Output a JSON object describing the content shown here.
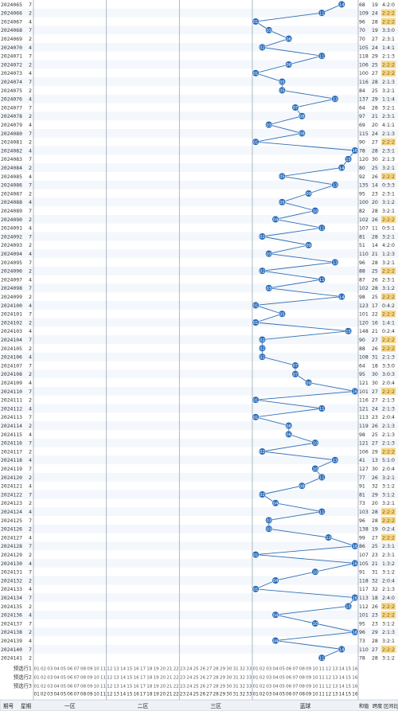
{
  "chart_data": {
    "type": "table",
    "title": "",
    "header_bottom": {
      "period_label": "期号",
      "week_label": "星期",
      "zone1_label": "一区",
      "zone2_label": "二区",
      "zone3_label": "三区",
      "blue_label": "蓝球",
      "sum_label": "和值",
      "span_label": "跨度",
      "ratio_label": "区间比"
    },
    "red_numbers_label": [
      "01",
      "02",
      "03",
      "04",
      "05",
      "06",
      "07",
      "08",
      "09",
      "10",
      "11",
      "12",
      "13",
      "14",
      "15",
      "16",
      "17",
      "18",
      "19",
      "20",
      "21",
      "22",
      "23",
      "24",
      "25",
      "26",
      "27",
      "28",
      "29",
      "30",
      "31",
      "32",
      "33"
    ],
    "blue_numbers_label": [
      "01",
      "02",
      "03",
      "04",
      "05",
      "06",
      "07",
      "08",
      "09",
      "10",
      "11",
      "12",
      "13",
      "14",
      "15",
      "16"
    ],
    "forecast_rows": [
      "预选行1",
      "预选行2",
      "预选行3"
    ],
    "draws": [
      {
        "period": "2024065",
        "week": "7",
        "blue": 14,
        "sum": 68,
        "span": 19,
        "ratio": "4:2:0"
      },
      {
        "period": "2024066",
        "week": "2",
        "blue": 11,
        "sum": 109,
        "span": 24,
        "ratio": "2:2:2"
      },
      {
        "period": "2024067",
        "week": "4",
        "blue": 1,
        "sum": 96,
        "span": 28,
        "ratio": "2:2:2"
      },
      {
        "period": "2024068",
        "week": "7",
        "blue": 3,
        "sum": 70,
        "span": 19,
        "ratio": "3:3:0"
      },
      {
        "period": "2024069",
        "week": "2",
        "blue": 6,
        "sum": 70,
        "span": 27,
        "ratio": "2:3:1"
      },
      {
        "period": "2024070",
        "week": "4",
        "blue": 2,
        "sum": 105,
        "span": 24,
        "ratio": "1:4:1"
      },
      {
        "period": "2024071",
        "week": "7",
        "blue": 11,
        "sum": 118,
        "span": 29,
        "ratio": "2:1:3"
      },
      {
        "period": "2024072",
        "week": "2",
        "blue": 6,
        "sum": 106,
        "span": 25,
        "ratio": "2:2:2"
      },
      {
        "period": "2024073",
        "week": "4",
        "blue": 1,
        "sum": 100,
        "span": 27,
        "ratio": "2:2:2"
      },
      {
        "period": "2024074",
        "week": "7",
        "blue": 5,
        "sum": 116,
        "span": 28,
        "ratio": "2:1:3"
      },
      {
        "period": "2024075",
        "week": "2",
        "blue": 5,
        "sum": 84,
        "span": 25,
        "ratio": "3:2:1"
      },
      {
        "period": "2024076",
        "week": "4",
        "blue": 13,
        "sum": 137,
        "span": 29,
        "ratio": "1:1:4"
      },
      {
        "period": "2024077",
        "week": "7",
        "blue": 7,
        "sum": 64,
        "span": 28,
        "ratio": "3:2:1"
      },
      {
        "period": "2024078",
        "week": "2",
        "blue": 8,
        "sum": 97,
        "span": 21,
        "ratio": "2:3:1"
      },
      {
        "period": "2024079",
        "week": "4",
        "blue": 3,
        "sum": 69,
        "span": 20,
        "ratio": "4:1:1"
      },
      {
        "period": "2024080",
        "week": "7",
        "blue": 8,
        "sum": 115,
        "span": 24,
        "ratio": "2:1:3"
      },
      {
        "period": "2024081",
        "week": "2",
        "blue": 1,
        "sum": 90,
        "span": 27,
        "ratio": "2:2:2"
      },
      {
        "period": "2024082",
        "week": "4",
        "blue": 16,
        "sum": 78,
        "span": 28,
        "ratio": "2:3:1"
      },
      {
        "period": "2024083",
        "week": "7",
        "blue": 15,
        "sum": 120,
        "span": 30,
        "ratio": "2:1:3"
      },
      {
        "period": "2024084",
        "week": "2",
        "blue": 14,
        "sum": 80,
        "span": 25,
        "ratio": "3:2:1"
      },
      {
        "period": "2024085",
        "week": "4",
        "blue": 5,
        "sum": 92,
        "span": 26,
        "ratio": "2:2:2"
      },
      {
        "period": "2024086",
        "week": "7",
        "blue": 13,
        "sum": 135,
        "span": 14,
        "ratio": "0:3:3"
      },
      {
        "period": "2024087",
        "week": "2",
        "blue": 9,
        "sum": 95,
        "span": 23,
        "ratio": "2:3:1"
      },
      {
        "period": "2024088",
        "week": "4",
        "blue": 5,
        "sum": 100,
        "span": 20,
        "ratio": "3:1:2"
      },
      {
        "period": "2024089",
        "week": "7",
        "blue": 10,
        "sum": 82,
        "span": 28,
        "ratio": "3:2:1"
      },
      {
        "period": "2024090",
        "week": "2",
        "blue": 4,
        "sum": 102,
        "span": 26,
        "ratio": "2:2:2"
      },
      {
        "period": "2024091",
        "week": "4",
        "blue": 11,
        "sum": 107,
        "span": 11,
        "ratio": "0:5:1"
      },
      {
        "period": "2024092",
        "week": "7",
        "blue": 2,
        "sum": 81,
        "span": 28,
        "ratio": "3:2:1"
      },
      {
        "period": "2024093",
        "week": "2",
        "blue": 9,
        "sum": 51,
        "span": 14,
        "ratio": "4:2:0"
      },
      {
        "period": "2024094",
        "week": "4",
        "blue": 3,
        "sum": 110,
        "span": 21,
        "ratio": "1:2:3"
      },
      {
        "period": "2024095",
        "week": "7",
        "blue": 13,
        "sum": 96,
        "span": 28,
        "ratio": "3:2:1"
      },
      {
        "period": "2024096",
        "week": "2",
        "blue": 2,
        "sum": 88,
        "span": 25,
        "ratio": "2:2:2"
      },
      {
        "period": "2024097",
        "week": "4",
        "blue": 11,
        "sum": 87,
        "span": 26,
        "ratio": "2:3:1"
      },
      {
        "period": "2024098",
        "week": "7",
        "blue": 3,
        "sum": 102,
        "span": 28,
        "ratio": "3:1:2"
      },
      {
        "period": "2024099",
        "week": "2",
        "blue": 14,
        "sum": 98,
        "span": 25,
        "ratio": "2:2:2"
      },
      {
        "period": "2024100",
        "week": "4",
        "blue": 1,
        "sum": 123,
        "span": 17,
        "ratio": "0:4:2"
      },
      {
        "period": "2024101",
        "week": "7",
        "blue": 5,
        "sum": 101,
        "span": 22,
        "ratio": "2:2:2"
      },
      {
        "period": "2024102",
        "week": "2",
        "blue": 1,
        "sum": 120,
        "span": 16,
        "ratio": "1:4:1"
      },
      {
        "period": "2024103",
        "week": "4",
        "blue": 15,
        "sum": 148,
        "span": 21,
        "ratio": "0:2:4"
      },
      {
        "period": "2024104",
        "week": "7",
        "blue": 2,
        "sum": 90,
        "span": 27,
        "ratio": "2:2:2"
      },
      {
        "period": "2024105",
        "week": "2",
        "blue": 2,
        "sum": 88,
        "span": 26,
        "ratio": "2:2:2"
      },
      {
        "period": "2024106",
        "week": "4",
        "blue": 2,
        "sum": 108,
        "span": 31,
        "ratio": "2:1:3"
      },
      {
        "period": "2024107",
        "week": "7",
        "blue": 7,
        "sum": 64,
        "span": 18,
        "ratio": "3:3:0"
      },
      {
        "period": "2024108",
        "week": "2",
        "blue": 7,
        "sum": 95,
        "span": 30,
        "ratio": "3:0:3"
      },
      {
        "period": "2024109",
        "week": "4",
        "blue": 9,
        "sum": 121,
        "span": 30,
        "ratio": "2:0:4"
      },
      {
        "period": "2024110",
        "week": "7",
        "blue": 16,
        "sum": 101,
        "span": 27,
        "ratio": "2:2:2"
      },
      {
        "period": "2024111",
        "week": "2",
        "blue": 1,
        "sum": 116,
        "span": 27,
        "ratio": "2:1:3"
      },
      {
        "period": "2024112",
        "week": "4",
        "blue": 11,
        "sum": 121,
        "span": 24,
        "ratio": "2:1:3"
      },
      {
        "period": "2024113",
        "week": "7",
        "blue": 1,
        "sum": 113,
        "span": 23,
        "ratio": "2:0:4"
      },
      {
        "period": "2024114",
        "week": "2",
        "blue": 6,
        "sum": 119,
        "span": 26,
        "ratio": "2:1:3"
      },
      {
        "period": "2024115",
        "week": "4",
        "blue": 6,
        "sum": 98,
        "span": 25,
        "ratio": "2:1:3"
      },
      {
        "period": "2024116",
        "week": "7",
        "blue": 10,
        "sum": 121,
        "span": 27,
        "ratio": "2:1:3"
      },
      {
        "period": "2024117",
        "week": "2",
        "blue": 2,
        "sum": 106,
        "span": 29,
        "ratio": "2:2:2"
      },
      {
        "period": "2024118",
        "week": "4",
        "blue": 13,
        "sum": 41,
        "span": 13,
        "ratio": "5:1:0"
      },
      {
        "period": "2024119",
        "week": "7",
        "blue": 10,
        "sum": 127,
        "span": 30,
        "ratio": "2:0:4"
      },
      {
        "period": "2024120",
        "week": "2",
        "blue": 11,
        "sum": 77,
        "span": 26,
        "ratio": "3:2:1"
      },
      {
        "period": "2024121",
        "week": "4",
        "blue": 8,
        "sum": 91,
        "span": 32,
        "ratio": "3:1:2"
      },
      {
        "period": "2024122",
        "week": "7",
        "blue": 2,
        "sum": 81,
        "span": 29,
        "ratio": "3:1:2"
      },
      {
        "period": "2024123",
        "week": "2",
        "blue": 4,
        "sum": 73,
        "span": 20,
        "ratio": "3:2:1"
      },
      {
        "period": "2024124",
        "week": "4",
        "blue": 11,
        "sum": 103,
        "span": 28,
        "ratio": "2:2:2"
      },
      {
        "period": "2024125",
        "week": "7",
        "blue": 3,
        "sum": 96,
        "span": 28,
        "ratio": "2:2:2"
      },
      {
        "period": "2024126",
        "week": "2",
        "blue": 3,
        "sum": 138,
        "span": 19,
        "ratio": "0:2:4"
      },
      {
        "period": "2024127",
        "week": "4",
        "blue": 12,
        "sum": 99,
        "span": 27,
        "ratio": "2:2:2"
      },
      {
        "period": "2024128",
        "week": "7",
        "blue": 16,
        "sum": 86,
        "span": 25,
        "ratio": "2:3:1"
      },
      {
        "period": "2024129",
        "week": "2",
        "blue": 1,
        "sum": 107,
        "span": 23,
        "ratio": "2:3:1"
      },
      {
        "period": "2024130",
        "week": "4",
        "blue": 16,
        "sum": 105,
        "span": 21,
        "ratio": "1:3:2"
      },
      {
        "period": "2024131",
        "week": "7",
        "blue": 10,
        "sum": 91,
        "span": 31,
        "ratio": "3:1:2"
      },
      {
        "period": "2024132",
        "week": "2",
        "blue": 4,
        "sum": 118,
        "span": 32,
        "ratio": "2:0:4"
      },
      {
        "period": "2024133",
        "week": "4",
        "blue": 1,
        "sum": 117,
        "span": 32,
        "ratio": "2:1:3"
      },
      {
        "period": "2024134",
        "week": "7",
        "blue": 16,
        "sum": 113,
        "span": 18,
        "ratio": "2:4:0"
      },
      {
        "period": "2024135",
        "week": "2",
        "blue": 15,
        "sum": 112,
        "span": 26,
        "ratio": "2:2:2"
      },
      {
        "period": "2024136",
        "week": "4",
        "blue": 4,
        "sum": 101,
        "span": 23,
        "ratio": "2:2:2"
      },
      {
        "period": "2024137",
        "week": "7",
        "blue": 10,
        "sum": 95,
        "span": 23,
        "ratio": "3:1:2"
      },
      {
        "period": "2024138",
        "week": "2",
        "blue": 16,
        "sum": 96,
        "span": 29,
        "ratio": "2:1:3"
      },
      {
        "period": "2024139",
        "week": "4",
        "blue": 4,
        "sum": 73,
        "span": 28,
        "ratio": "3:2:1"
      },
      {
        "period": "2024140",
        "week": "7",
        "blue": 14,
        "sum": 110,
        "span": 27,
        "ratio": "2:2:2"
      },
      {
        "period": "2024141",
        "week": "2",
        "blue": 11,
        "sum": 78,
        "span": 28,
        "ratio": "3:1:2"
      }
    ]
  }
}
